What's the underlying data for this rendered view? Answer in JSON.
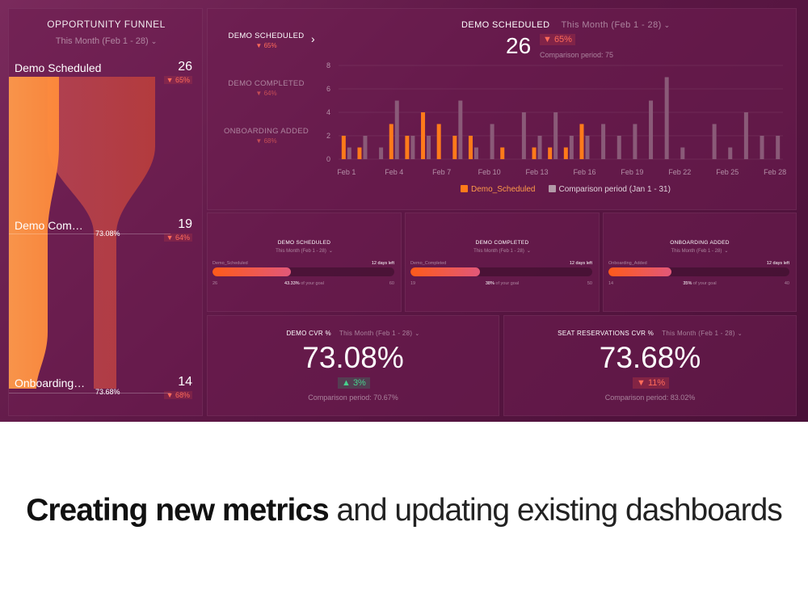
{
  "funnel": {
    "title": "OPPORTUNITY FUNNEL",
    "period": "This Month (Feb 1 - 28)",
    "stages": [
      {
        "label": "Demo Scheduled",
        "count": "26",
        "change": "▼ 65%",
        "conversion": ""
      },
      {
        "label": "Demo Com…",
        "count": "19",
        "change": "▼ 64%",
        "conversion": "73.08%"
      },
      {
        "label": "Onboarding…",
        "count": "14",
        "change": "▼ 68%",
        "conversion": "73.68%"
      }
    ]
  },
  "chart_panel": {
    "metrics": [
      {
        "name": "DEMO SCHEDULED",
        "change": "▼ 65%"
      },
      {
        "name": "DEMO COMPLETED",
        "change": "▼ 64%"
      },
      {
        "name": "ONBOARDING ADDED",
        "change": "▼ 68%"
      }
    ],
    "title": "DEMO SCHEDULED",
    "period": "This Month (Feb 1 - 28)",
    "value": "26",
    "change": "▼ 65%",
    "comparison": "Comparison period: 75",
    "legend": [
      "Demo_Scheduled",
      "Comparison period (Jan 1 - 31)"
    ]
  },
  "chart_data": {
    "type": "bar",
    "categories": [
      "Feb 1",
      "Feb 2",
      "Feb 3",
      "Feb 4",
      "Feb 5",
      "Feb 6",
      "Feb 7",
      "Feb 8",
      "Feb 9",
      "Feb 10",
      "Feb 11",
      "Feb 12",
      "Feb 13",
      "Feb 14",
      "Feb 15",
      "Feb 16",
      "Feb 17",
      "Feb 18",
      "Feb 19",
      "Feb 20",
      "Feb 21",
      "Feb 22",
      "Feb 23",
      "Feb 24",
      "Feb 25",
      "Feb 26",
      "Feb 27",
      "Feb 28"
    ],
    "x_tick_labels": [
      "Feb 1",
      "Feb 4",
      "Feb 7",
      "Feb 10",
      "Feb 13",
      "Feb 16",
      "Feb 19",
      "Feb 22",
      "Feb 25",
      "Feb 28"
    ],
    "y_ticks": [
      0,
      2,
      4,
      6,
      8
    ],
    "ylim": [
      0,
      8
    ],
    "series": [
      {
        "name": "Demo_Scheduled",
        "color": "#ff7a1a",
        "values": [
          2,
          1,
          0,
          3,
          2,
          4,
          3,
          2,
          2,
          0,
          1,
          0,
          1,
          1,
          1,
          3,
          0,
          0,
          0,
          0,
          0,
          0,
          0,
          0,
          0,
          0,
          0,
          0
        ]
      },
      {
        "name": "Comparison period (Jan 1 - 31)",
        "color": "#8a5a78",
        "values": [
          1,
          2,
          1,
          5,
          2,
          2,
          0,
          5,
          1,
          3,
          0,
          4,
          2,
          4,
          2,
          2,
          3,
          2,
          3,
          5,
          7,
          1,
          0,
          3,
          1,
          4,
          2,
          2
        ]
      }
    ],
    "legend_position": "bottom"
  },
  "goals": [
    {
      "title": "DEMO SCHEDULED",
      "period": "This Month (Feb 1 - 28)",
      "metric": "Demo_Scheduled",
      "days_left": "12 days left",
      "min": "26",
      "progress_text": "43.33%",
      "progress_suffix": "of your goal",
      "max": "60",
      "progress": 0.4333
    },
    {
      "title": "DEMO COMPLETED",
      "period": "This Month (Feb 1 - 28)",
      "metric": "Demo_Completed",
      "days_left": "12 days left",
      "min": "19",
      "progress_text": "38%",
      "progress_suffix": "of your goal",
      "max": "50",
      "progress": 0.38
    },
    {
      "title": "ONBOARDING ADDED",
      "period": "This Month (Feb 1 - 28)",
      "metric": "Onboarding_Added",
      "days_left": "12 days left",
      "min": "14",
      "progress_text": "35%",
      "progress_suffix": "of your goal",
      "max": "40",
      "progress": 0.35
    }
  ],
  "kpis": [
    {
      "title": "DEMO CVR %",
      "period": "This Month (Feb 1 - 28)",
      "value": "73.08%",
      "change": "▲ 3%",
      "direction": "up",
      "comparison": "Comparison period: 70.67%"
    },
    {
      "title": "SEAT RESERVATIONS CVR %",
      "period": "This Month (Feb 1 - 28)",
      "value": "73.68%",
      "change": "▼ 11%",
      "direction": "down",
      "comparison": "Comparison period: 83.02%"
    }
  ],
  "caption": {
    "bold": "Creating new metrics",
    "light": "and updating existing dashboards"
  },
  "colors": {
    "accent_orange": "#ff7a1a",
    "comparison_bar": "#8a5a78",
    "negative": "#ff6b5a",
    "positive": "#47d18c",
    "background": "#5e1846"
  }
}
